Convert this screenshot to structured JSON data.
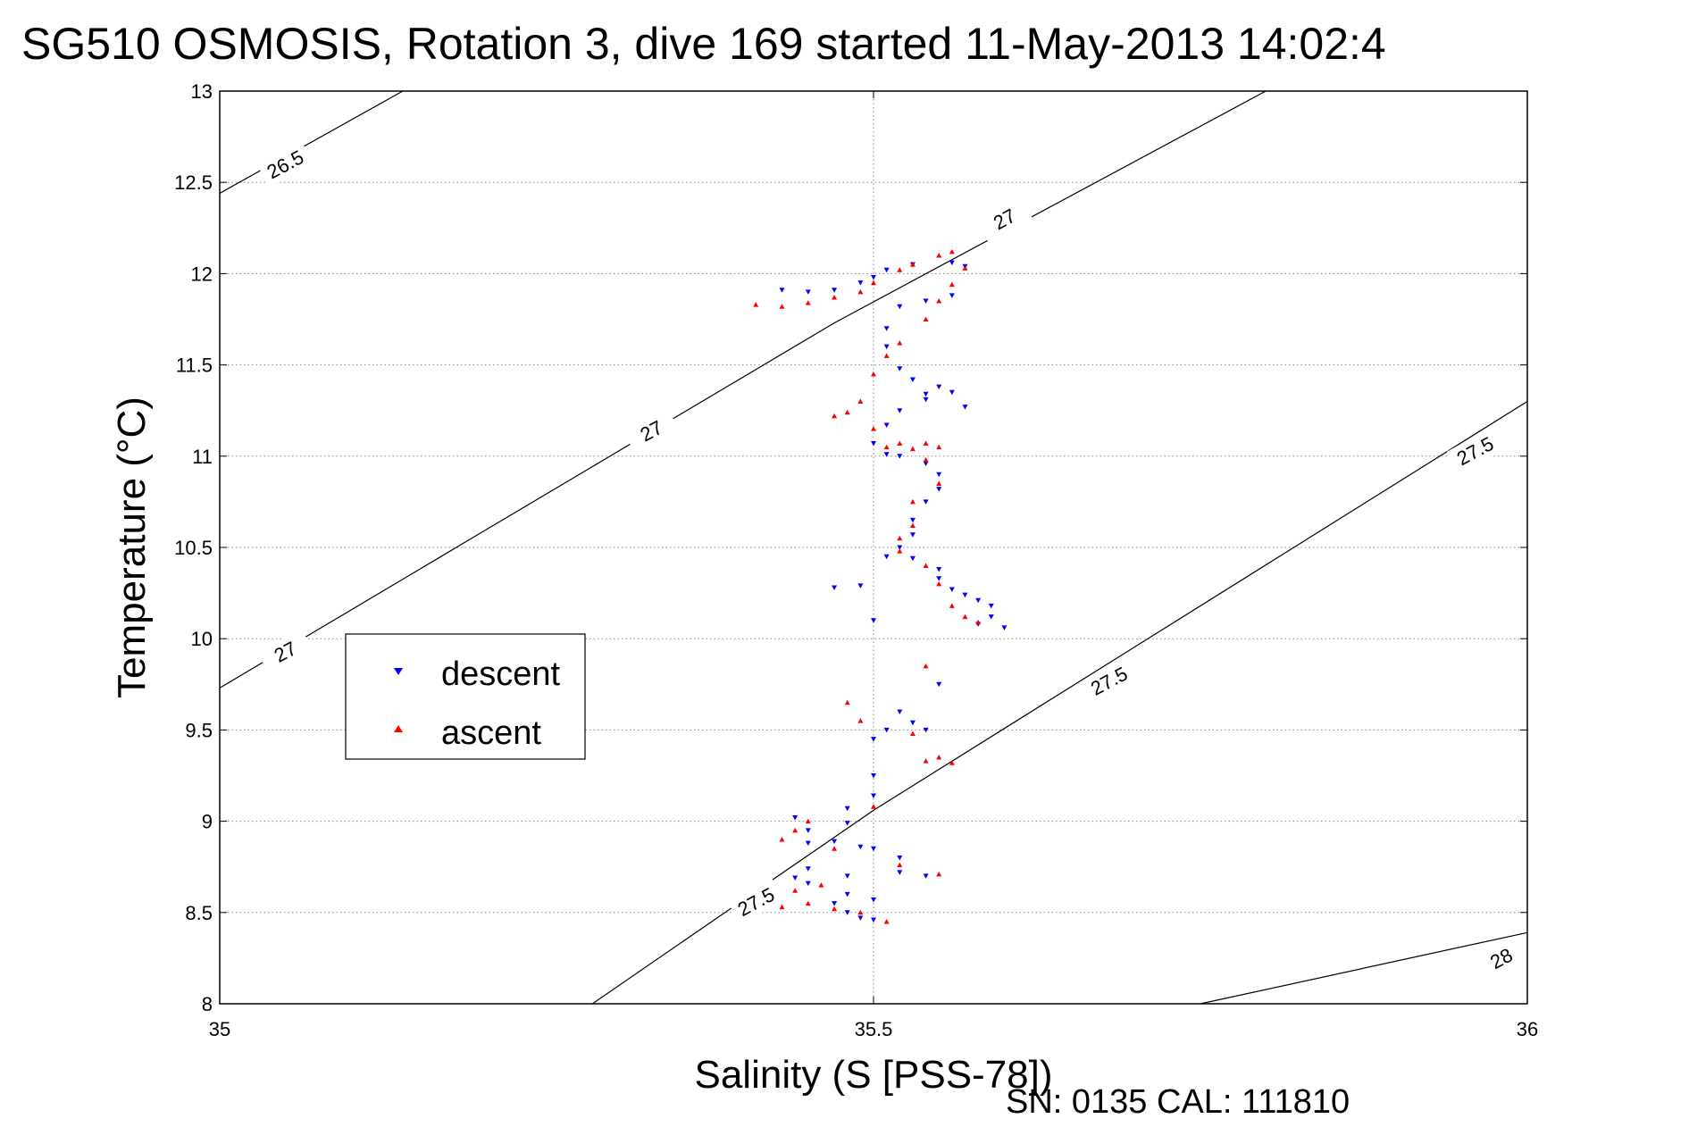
{
  "chart_data": {
    "type": "scatter",
    "title": "SG510 OSMOSIS, Rotation 3, dive 169 started 11-May-2013 14:02:4",
    "xlabel": "Salinity (S [PSS-78])",
    "ylabel": "Temperature (°C)",
    "footnote": "SN: 0135  CAL: 111810",
    "xlim": [
      35,
      36
    ],
    "ylim": [
      8,
      13
    ],
    "xticks": [
      "35",
      "35.5",
      "36"
    ],
    "yticks": [
      "8",
      "8.5",
      "9",
      "9.5",
      "10",
      "10.5",
      "11",
      "11.5",
      "12",
      "12.5",
      "13"
    ],
    "grid": true,
    "legend": {
      "position": "left-middle",
      "entries": [
        "descent",
        "ascent"
      ]
    },
    "density_contours": [
      {
        "label": "26.5",
        "points": [
          [
            35.0,
            12.44
          ],
          [
            35.14,
            13.0
          ]
        ]
      },
      {
        "label": "27",
        "points": [
          [
            35.0,
            9.73
          ],
          [
            35.47,
            11.73
          ],
          [
            35.8,
            13.0
          ]
        ]
      },
      {
        "label": "27.5",
        "points": [
          [
            35.285,
            8.0
          ],
          [
            35.5,
            9.06
          ],
          [
            36.0,
            11.3
          ]
        ]
      },
      {
        "label": "28",
        "points": [
          [
            35.75,
            8.0
          ],
          [
            36.0,
            8.39
          ]
        ]
      }
    ],
    "contour_labels": [
      {
        "text": "26.5",
        "x": 35.05,
        "y": 12.6
      },
      {
        "text": "27",
        "x": 35.6,
        "y": 12.3
      },
      {
        "text": "27",
        "x": 35.33,
        "y": 11.14
      },
      {
        "text": "27",
        "x": 35.05,
        "y": 9.93
      },
      {
        "text": "27.5",
        "x": 35.96,
        "y": 11.03
      },
      {
        "text": "27.5",
        "x": 35.68,
        "y": 9.77
      },
      {
        "text": "27.5",
        "x": 35.41,
        "y": 8.56
      },
      {
        "text": "28",
        "x": 35.98,
        "y": 8.25
      }
    ],
    "series": [
      {
        "name": "descent",
        "color": "#0000ff",
        "marker": "triangle-down",
        "points": [
          [
            35.43,
            11.91
          ],
          [
            35.45,
            11.9
          ],
          [
            35.47,
            11.91
          ],
          [
            35.49,
            11.95
          ],
          [
            35.5,
            11.98
          ],
          [
            35.51,
            12.02
          ],
          [
            35.53,
            12.05
          ],
          [
            35.56,
            12.06
          ],
          [
            35.57,
            12.04
          ],
          [
            35.56,
            11.88
          ],
          [
            35.54,
            11.85
          ],
          [
            35.52,
            11.82
          ],
          [
            35.51,
            11.7
          ],
          [
            35.51,
            11.6
          ],
          [
            35.52,
            11.48
          ],
          [
            35.53,
            11.42
          ],
          [
            35.54,
            11.34
          ],
          [
            35.55,
            11.38
          ],
          [
            35.56,
            11.35
          ],
          [
            35.57,
            11.27
          ],
          [
            35.54,
            11.31
          ],
          [
            35.52,
            11.25
          ],
          [
            35.51,
            11.17
          ],
          [
            35.5,
            11.07
          ],
          [
            35.51,
            11.01
          ],
          [
            35.52,
            11.0
          ],
          [
            35.54,
            10.96
          ],
          [
            35.55,
            10.9
          ],
          [
            35.55,
            10.82
          ],
          [
            35.54,
            10.75
          ],
          [
            35.53,
            10.65
          ],
          [
            35.53,
            10.57
          ],
          [
            35.52,
            10.5
          ],
          [
            35.51,
            10.45
          ],
          [
            35.53,
            10.44
          ],
          [
            35.55,
            10.38
          ],
          [
            35.55,
            10.33
          ],
          [
            35.56,
            10.27
          ],
          [
            35.57,
            10.24
          ],
          [
            35.58,
            10.21
          ],
          [
            35.59,
            10.18
          ],
          [
            35.59,
            10.12
          ],
          [
            35.6,
            10.06
          ],
          [
            35.58,
            10.08
          ],
          [
            35.5,
            10.1
          ],
          [
            35.49,
            10.29
          ],
          [
            35.47,
            10.28
          ],
          [
            35.55,
            9.75
          ],
          [
            35.52,
            9.6
          ],
          [
            35.51,
            9.5
          ],
          [
            35.5,
            9.45
          ],
          [
            35.53,
            9.54
          ],
          [
            35.54,
            9.5
          ],
          [
            35.5,
            9.25
          ],
          [
            35.5,
            9.14
          ],
          [
            35.48,
            9.07
          ],
          [
            35.48,
            8.99
          ],
          [
            35.45,
            8.95
          ],
          [
            35.44,
            9.02
          ],
          [
            35.45,
            8.88
          ],
          [
            35.47,
            8.89
          ],
          [
            35.49,
            8.86
          ],
          [
            35.5,
            8.85
          ],
          [
            35.52,
            8.8
          ],
          [
            35.45,
            8.74
          ],
          [
            35.48,
            8.7
          ],
          [
            35.52,
            8.72
          ],
          [
            35.54,
            8.7
          ],
          [
            35.44,
            8.69
          ],
          [
            35.45,
            8.66
          ],
          [
            35.48,
            8.6
          ],
          [
            35.5,
            8.57
          ],
          [
            35.47,
            8.55
          ],
          [
            35.48,
            8.5
          ],
          [
            35.49,
            8.47
          ],
          [
            35.5,
            8.46
          ]
        ]
      },
      {
        "name": "ascent",
        "color": "#ff0000",
        "marker": "triangle-up",
        "points": [
          [
            35.41,
            11.83
          ],
          [
            35.43,
            11.82
          ],
          [
            35.45,
            11.84
          ],
          [
            35.47,
            11.87
          ],
          [
            35.49,
            11.9
          ],
          [
            35.5,
            11.95
          ],
          [
            35.52,
            12.02
          ],
          [
            35.53,
            12.05
          ],
          [
            35.55,
            12.1
          ],
          [
            35.56,
            12.12
          ],
          [
            35.57,
            12.03
          ],
          [
            35.56,
            11.94
          ],
          [
            35.55,
            11.85
          ],
          [
            35.54,
            11.75
          ],
          [
            35.52,
            11.62
          ],
          [
            35.51,
            11.55
          ],
          [
            35.5,
            11.45
          ],
          [
            35.49,
            11.3
          ],
          [
            35.48,
            11.24
          ],
          [
            35.47,
            11.22
          ],
          [
            35.5,
            11.15
          ],
          [
            35.51,
            11.05
          ],
          [
            35.52,
            11.07
          ],
          [
            35.53,
            11.04
          ],
          [
            35.54,
            11.07
          ],
          [
            35.55,
            11.05
          ],
          [
            35.54,
            10.98
          ],
          [
            35.55,
            10.85
          ],
          [
            35.53,
            10.75
          ],
          [
            35.53,
            10.62
          ],
          [
            35.52,
            10.55
          ],
          [
            35.52,
            10.48
          ],
          [
            35.54,
            10.4
          ],
          [
            35.55,
            10.3
          ],
          [
            35.56,
            10.18
          ],
          [
            35.57,
            10.12
          ],
          [
            35.58,
            10.09
          ],
          [
            35.54,
            9.85
          ],
          [
            35.48,
            9.65
          ],
          [
            35.49,
            9.55
          ],
          [
            35.53,
            9.48
          ],
          [
            35.55,
            9.35
          ],
          [
            35.54,
            9.33
          ],
          [
            35.56,
            9.32
          ],
          [
            35.5,
            9.08
          ],
          [
            35.45,
            9.0
          ],
          [
            35.44,
            8.95
          ],
          [
            35.43,
            8.9
          ],
          [
            35.47,
            8.85
          ],
          [
            35.52,
            8.76
          ],
          [
            35.55,
            8.71
          ],
          [
            35.44,
            8.62
          ],
          [
            35.45,
            8.55
          ],
          [
            35.47,
            8.52
          ],
          [
            35.49,
            8.5
          ],
          [
            35.43,
            8.53
          ],
          [
            35.51,
            8.45
          ],
          [
            35.46,
            8.65
          ]
        ]
      }
    ]
  }
}
